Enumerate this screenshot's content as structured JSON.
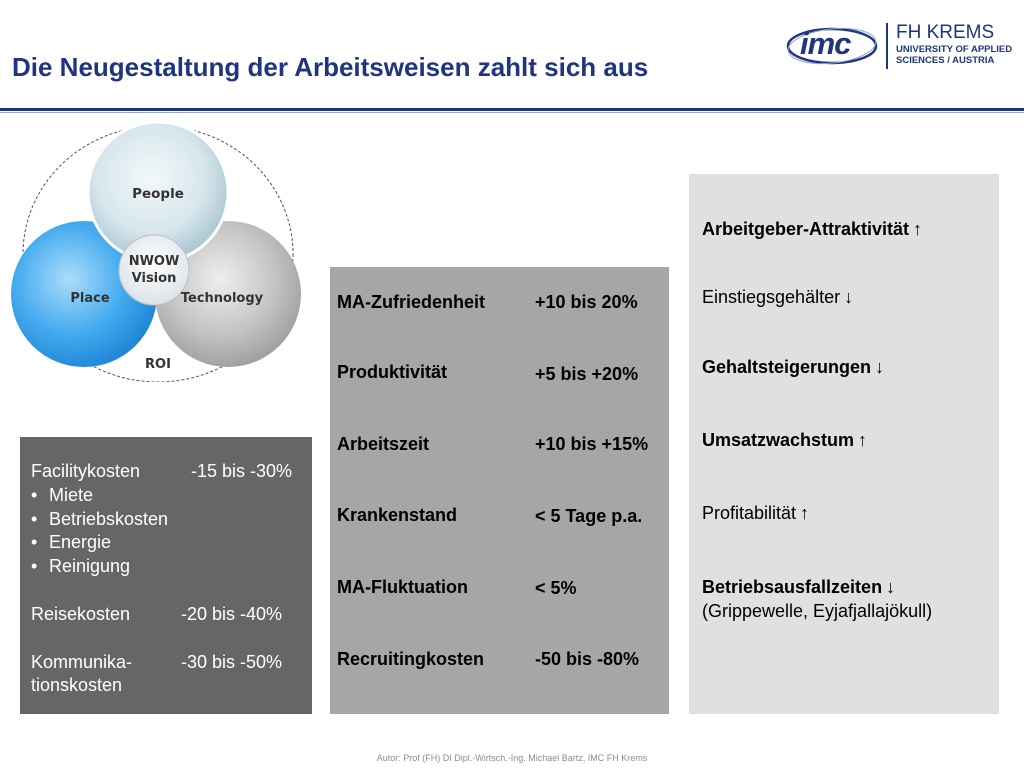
{
  "title": "Die Neugestaltung der Arbeitsweisen zahlt sich aus",
  "logo": {
    "imc": "imc",
    "fh": "FH KREMS",
    "university_line1": "UNIVERSITY OF APPLIED",
    "university_line2": "SCIENCES / AUSTRIA"
  },
  "venn": {
    "people": "People",
    "place": "Place",
    "technology": "Technology",
    "center_line1": "NWOW",
    "center_line2": "Vision",
    "roi": "ROI"
  },
  "costs": {
    "facility_label": "Facilitykosten",
    "facility_value": "-15 bis -30%",
    "bullets": [
      "Miete",
      "Betriebskosten",
      "Energie",
      "Reinigung"
    ],
    "bullet_char": "•",
    "travel_label": "Reisekosten",
    "travel_value": "-20 bis -40%",
    "comm_label_1": "Kommunika-",
    "comm_label_2": "tionskosten",
    "comm_value": "-30 bis -50%"
  },
  "metrics": [
    {
      "label": "MA-Zufriedenheit",
      "value": "+10 bis 20%"
    },
    {
      "label": "Produktivität",
      "value": "+5 bis +20%"
    },
    {
      "label": "Arbeitszeit",
      "value": "+10 bis +15%"
    },
    {
      "label": "Krankenstand",
      "value": "< 5 Tage p.a."
    },
    {
      "label": "MA-Fluktuation",
      "value": "< 5%"
    },
    {
      "label": "Recruitingkosten",
      "value": "-50 bis -80%"
    }
  ],
  "effects": [
    {
      "label": "Arbeitgeber-Attraktivität",
      "arrow": "↑",
      "bold": true
    },
    {
      "label": "Einstiegsgehälter",
      "arrow": "↓",
      "bold": false
    },
    {
      "label": "Gehaltsteigerungen",
      "arrow": "↓",
      "bold": true
    },
    {
      "label": "Umsatzwachstum",
      "arrow": "↑",
      "bold": true
    },
    {
      "label": "Profitabilität",
      "arrow": "↑",
      "bold": false
    },
    {
      "label": "Betriebsausfallzeiten",
      "arrow": "↓",
      "bold": true
    }
  ],
  "effects_note": "(Grippewelle, Eyjafjallajökull)",
  "footer": "Autor: Prof (FH) DI Dipl.-Wirtsch.-Ing. Michael Bartz, IMC FH Krems"
}
